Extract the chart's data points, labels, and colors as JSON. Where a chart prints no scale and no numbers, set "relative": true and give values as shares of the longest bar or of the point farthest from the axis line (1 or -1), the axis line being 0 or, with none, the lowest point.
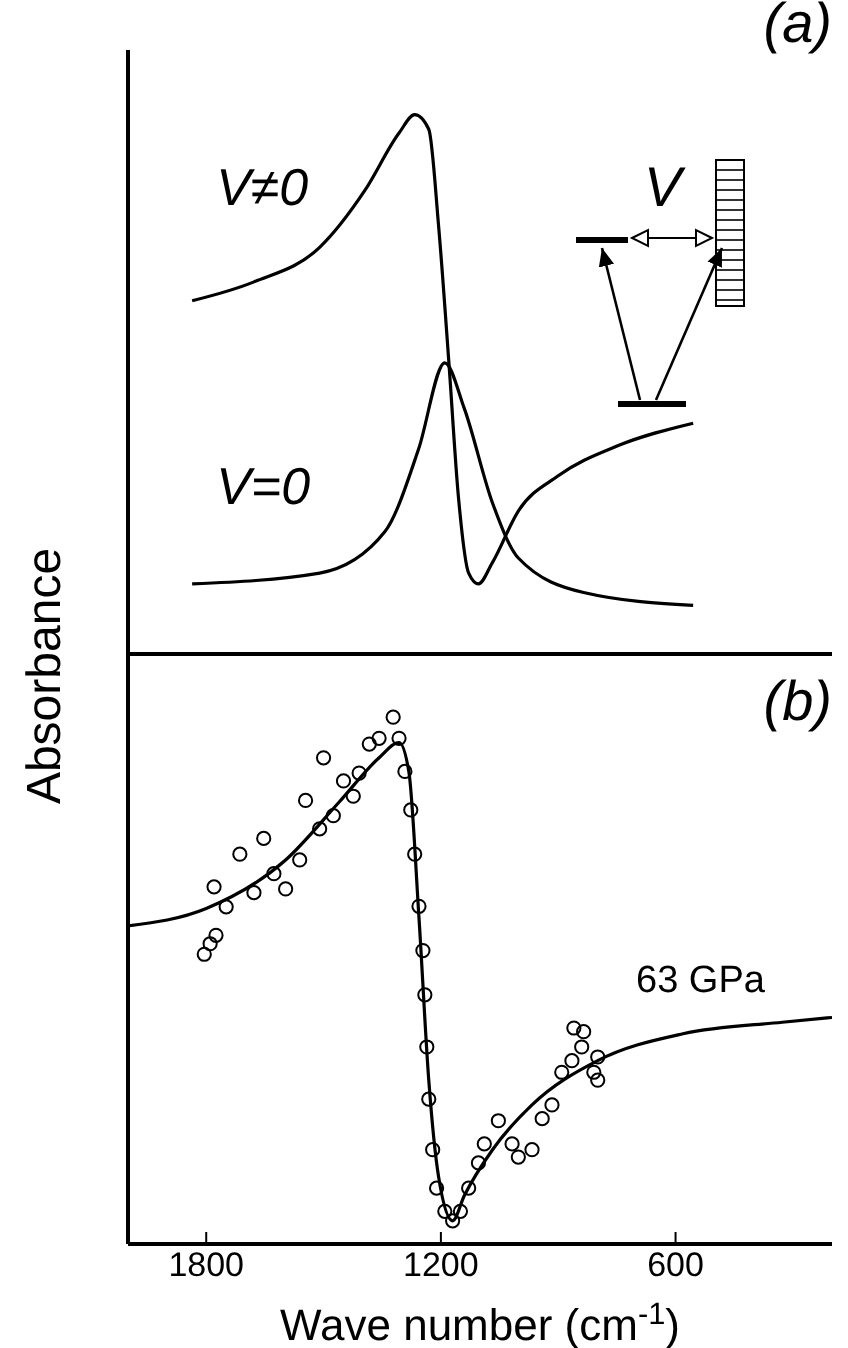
{
  "chart_data": [
    {
      "type": "line",
      "title": "(a)",
      "ylabel": "Absorbance",
      "relative": true,
      "xlim": [
        2000,
        200
      ],
      "tick_labels": false,
      "annotations": [
        "V"
      ],
      "series": [
        {
          "name": "V≠0",
          "color": "#000000",
          "x": [
            1836,
            1678,
            1510,
            1394,
            1307,
            1267,
            1231,
            1206,
            1180,
            1155,
            1129,
            1104,
            1068,
            1002,
            901,
            748,
            555
          ],
          "values": [
            0.655,
            0.69,
            0.754,
            0.86,
            0.966,
            1.0,
            0.973,
            0.795,
            0.545,
            0.29,
            0.15,
            0.13,
            0.17,
            0.265,
            0.33,
            0.386,
            0.428
          ]
        },
        {
          "name": "V=0",
          "color": "#000000",
          "x": [
            1836,
            1510,
            1343,
            1257,
            1190,
            1140,
            1068,
            1002,
            835,
            555
          ],
          "values": [
            0.13,
            0.15,
            0.227,
            0.38,
            0.54,
            0.455,
            0.28,
            0.178,
            0.114,
            0.09
          ]
        }
      ]
    },
    {
      "type": "line",
      "title": "(b)",
      "xlabel": "Wave number (cm$^{-1}$)",
      "relative": true,
      "xlim": [
        2000,
        200
      ],
      "xticks": [
        1800,
        1200,
        600
      ],
      "annotations": [
        "63 GPa"
      ],
      "series": [
        {
          "color": "#000000",
          "x": [
            2000,
            1800,
            1597,
            1460,
            1358,
            1307,
            1282,
            1256,
            1231,
            1206,
            1170,
            1140,
            1068,
            967,
            799,
            581,
            327,
            200
          ],
          "values": [
            0.604,
            0.637,
            0.729,
            0.839,
            0.923,
            0.952,
            0.897,
            0.619,
            0.311,
            0.128,
            0.044,
            0.092,
            0.179,
            0.264,
            0.348,
            0.399,
            0.421,
            0.43
          ]
        },
        {
          "type": "scatter",
          "color": "#000000",
          "marker": "circle",
          "x": [
            1805,
            1790,
            1775,
            1780,
            1749,
            1714,
            1678,
            1653,
            1627,
            1597,
            1561,
            1546,
            1510,
            1500,
            1475,
            1449,
            1424,
            1409,
            1383,
            1358,
            1322,
            1307,
            1292,
            1277,
            1267,
            1256,
            1246,
            1241,
            1236,
            1231,
            1221,
            1211,
            1190,
            1170,
            1150,
            1129,
            1104,
            1089,
            1053,
            1018,
            1002,
            967,
            941,
            916,
            891,
            865,
            860,
            840,
            835,
            809,
            799,
            799
          ],
          "values": [
            0.55,
            0.57,
            0.586,
            0.678,
            0.64,
            0.74,
            0.667,
            0.77,
            0.703,
            0.674,
            0.729,
            0.842,
            0.788,
            0.923,
            0.813,
            0.879,
            0.85,
            0.894,
            0.949,
            0.96,
            1.0,
            0.96,
            0.897,
            0.824,
            0.74,
            0.641,
            0.557,
            0.473,
            0.374,
            0.275,
            0.179,
            0.106,
            0.062,
            0.044,
            0.062,
            0.106,
            0.154,
            0.19,
            0.234,
            0.19,
            0.165,
            0.179,
            0.238,
            0.264,
            0.326,
            0.348,
            0.41,
            0.374,
            0.403,
            0.326,
            0.355,
            0.311
          ]
        }
      ]
    }
  ]
}
